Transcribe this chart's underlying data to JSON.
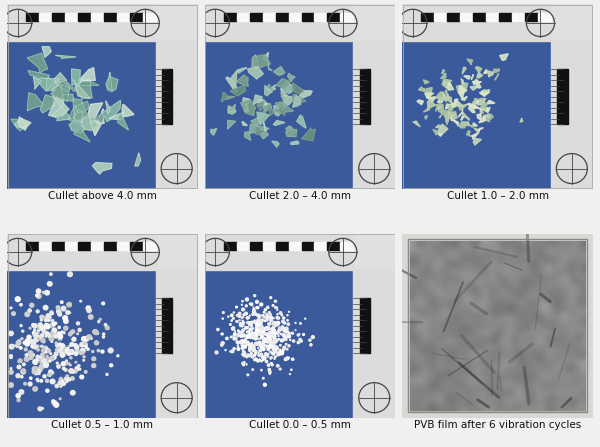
{
  "figsize": [
    6.0,
    4.47
  ],
  "dpi": 100,
  "background_color": "#f0f0f0",
  "panel_bg_color": "#3a5a9c",
  "captions": [
    "Cullet above 4.0 mm",
    "Cullet 2.0 – 4.0 mm",
    "Cullet 1.0 – 2.0 mm",
    "Cullet 0.5 – 1.0 mm",
    "Cullet 0.0 – 0.5 mm",
    "PVB film after 6 vibration cycles"
  ],
  "caption_fontsize": 7.5,
  "nrows": 2,
  "ncols": 3,
  "ruler_bg": "#dcdcdc",
  "ruler_black": "#111111"
}
